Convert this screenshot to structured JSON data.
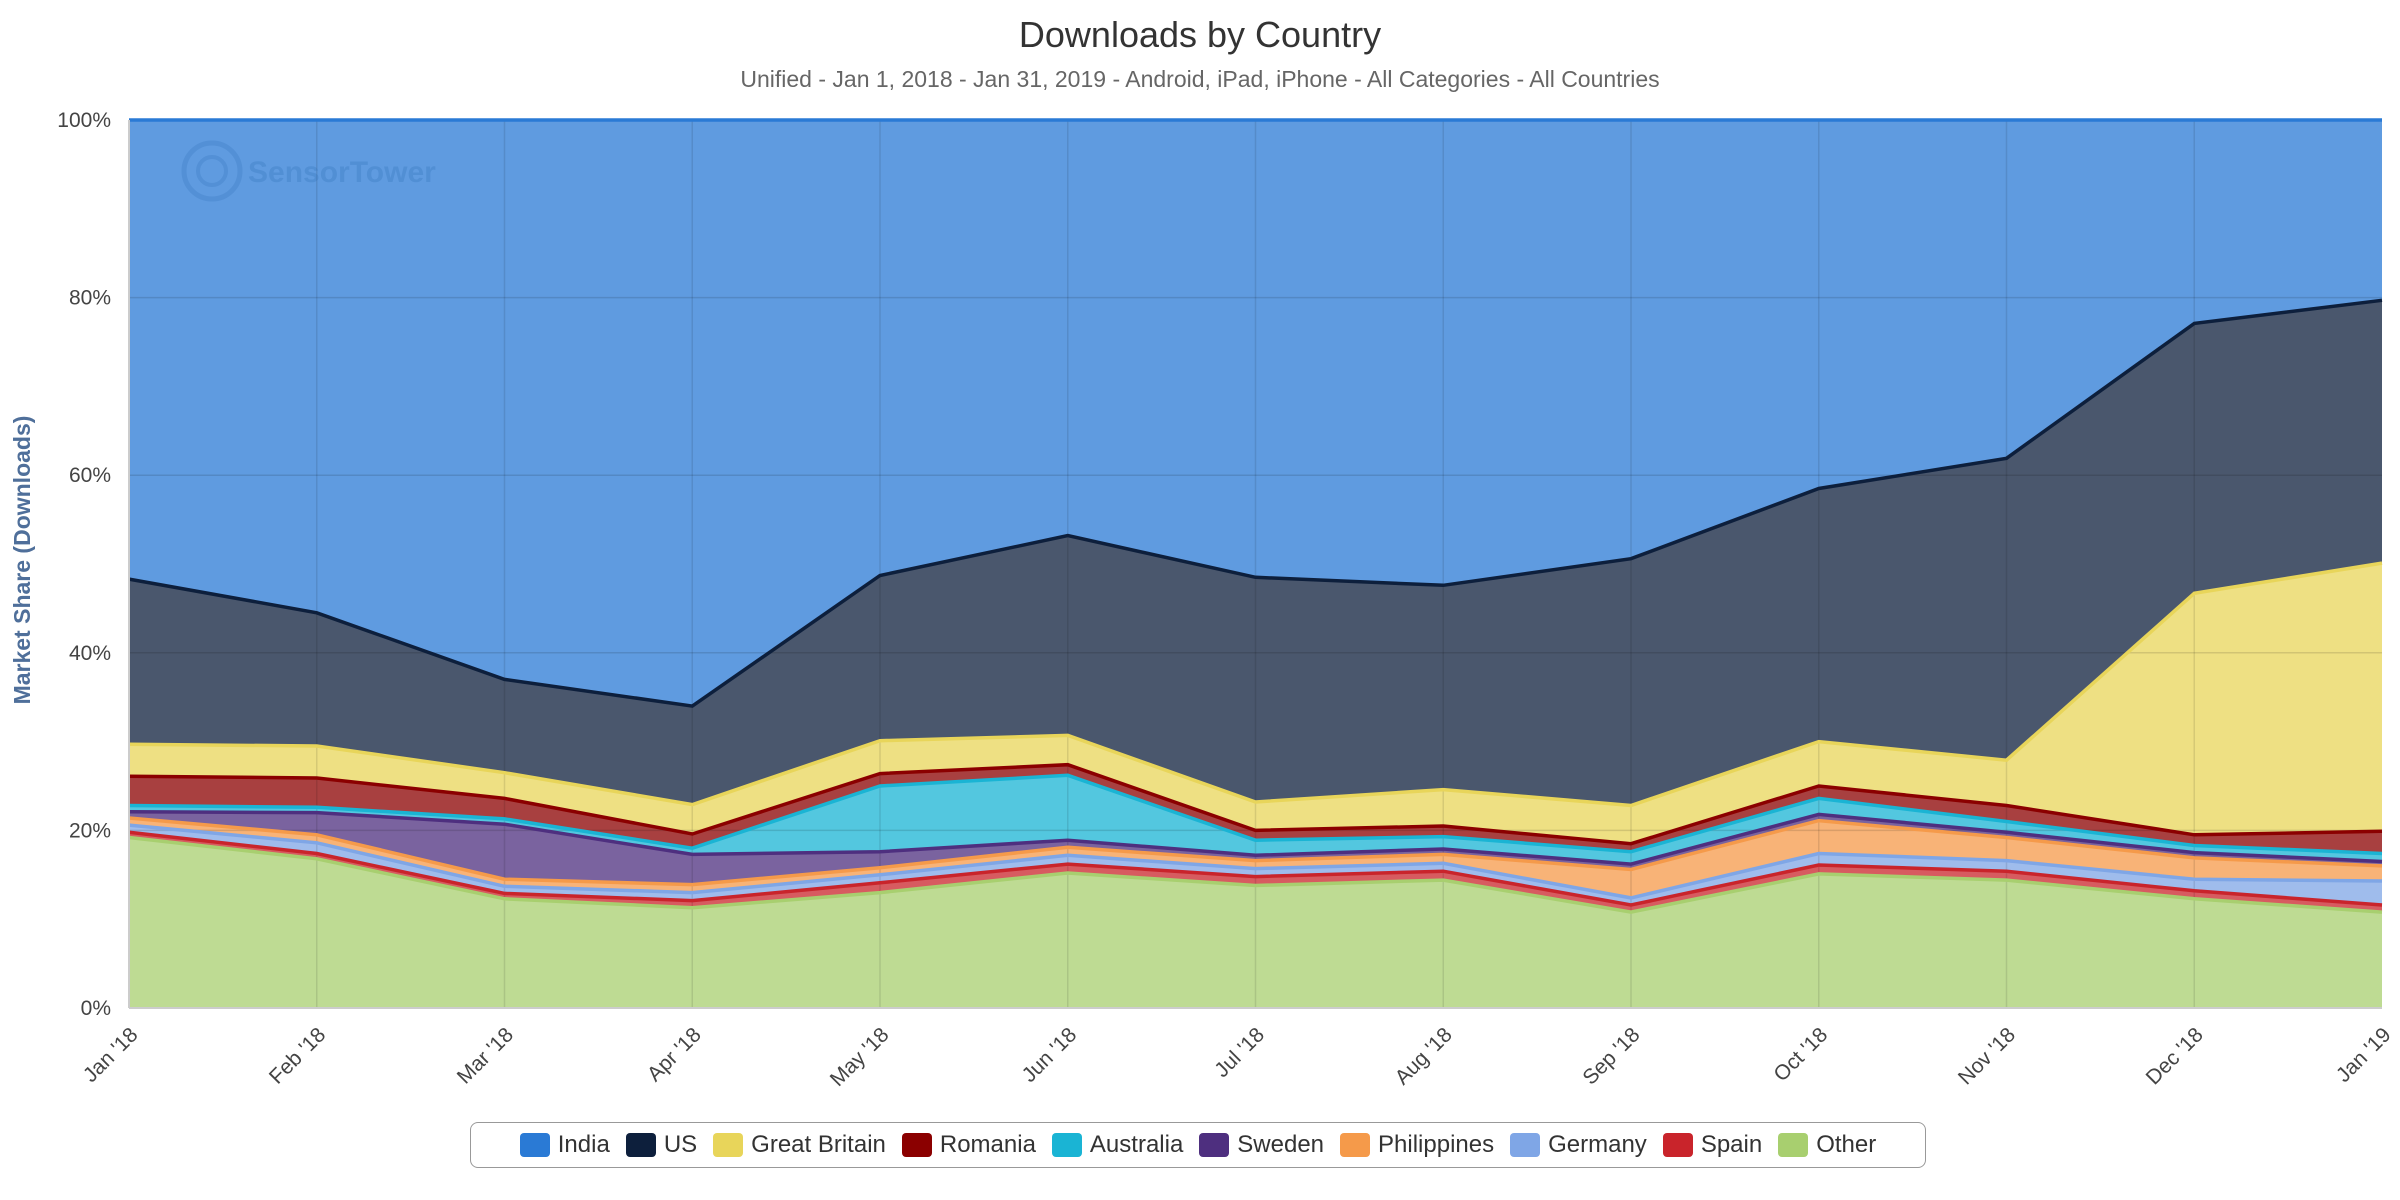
{
  "chart_data": {
    "type": "area",
    "stacked": true,
    "normalized": true,
    "title": "Downloads by Country",
    "subtitle": "Unified - Jan 1, 2018 - Jan 31, 2019 - Android, iPad, iPhone - All Categories - All Countries",
    "ylabel": "Market Share (Downloads)",
    "xlabel": "",
    "ylim": [
      0,
      100
    ],
    "y_ticks": [
      "0%",
      "20%",
      "40%",
      "60%",
      "80%",
      "100%"
    ],
    "y_tick_values": [
      0,
      20,
      40,
      60,
      80,
      100
    ],
    "categories": [
      "Jan '18",
      "Feb '18",
      "Mar '18",
      "Apr '18",
      "May '18",
      "Jun '18",
      "Jul '18",
      "Aug '18",
      "Sep '18",
      "Oct '18",
      "Nov '18",
      "Dec '18",
      "Jan '19"
    ],
    "grid": true,
    "legend_position": "bottom-center",
    "watermark": "SensorTower",
    "series": [
      {
        "name": "Other",
        "color": "#a8cf6f",
        "values": [
          19.2,
          16.8,
          12.3,
          11.3,
          13.0,
          15.2,
          13.8,
          14.4,
          10.8,
          15.1,
          14.4,
          12.3,
          10.8
        ]
      },
      {
        "name": "Spain",
        "color": "#c9242b",
        "values": [
          0.6,
          0.6,
          0.6,
          0.8,
          1.1,
          1.0,
          1.0,
          1.0,
          0.8,
          1.0,
          1.0,
          0.9,
          0.8
        ]
      },
      {
        "name": "Germany",
        "color": "#7fa6e6",
        "values": [
          0.8,
          1.2,
          0.8,
          0.9,
          0.9,
          1.0,
          0.9,
          0.9,
          0.8,
          1.3,
          1.2,
          1.3,
          2.7
        ]
      },
      {
        "name": "Philippines",
        "color": "#f59a4a",
        "values": [
          0.8,
          0.9,
          0.8,
          0.9,
          0.8,
          0.9,
          0.9,
          1.0,
          3.2,
          3.7,
          2.6,
          2.4,
          1.7
        ]
      },
      {
        "name": "Sweden",
        "color": "#4e2f7f",
        "values": [
          0.7,
          2.5,
          6.2,
          3.4,
          1.8,
          0.8,
          0.6,
          0.6,
          0.6,
          0.7,
          0.6,
          0.6,
          0.5
        ]
      },
      {
        "name": "Australia",
        "color": "#1ab4d4",
        "values": [
          0.7,
          0.6,
          0.6,
          0.7,
          7.4,
          7.3,
          1.7,
          1.4,
          1.4,
          1.8,
          1.2,
          0.8,
          0.9
        ]
      },
      {
        "name": "Romania",
        "color": "#8b0000",
        "values": [
          3.3,
          3.3,
          2.3,
          1.6,
          1.4,
          1.2,
          1.1,
          1.2,
          0.9,
          1.4,
          1.8,
          1.2,
          2.5
        ]
      },
      {
        "name": "Great Britain",
        "color": "#e8d55a",
        "values": [
          3.6,
          3.6,
          2.9,
          3.3,
          3.7,
          3.3,
          3.2,
          4.1,
          4.3,
          5.0,
          5.1,
          27.2,
          30.2
        ]
      },
      {
        "name": "US",
        "color": "#0d1f3c",
        "values": [
          18.6,
          15.0,
          10.5,
          11.1,
          18.6,
          22.5,
          25.3,
          23.0,
          27.8,
          28.5,
          34.0,
          30.4,
          29.6
        ]
      },
      {
        "name": "India",
        "color": "#2a7ad5",
        "values": [
          51.7,
          55.5,
          63.0,
          66.0,
          51.3,
          46.8,
          51.5,
          52.4,
          50.4,
          41.5,
          38.1,
          22.9,
          20.3
        ]
      }
    ]
  },
  "legend": {
    "items": [
      {
        "label": "India",
        "color": "#2a7ad5"
      },
      {
        "label": "US",
        "color": "#0d1f3c"
      },
      {
        "label": "Great Britain",
        "color": "#e8d55a"
      },
      {
        "label": "Romania",
        "color": "#8b0000"
      },
      {
        "label": "Australia",
        "color": "#1ab4d4"
      },
      {
        "label": "Sweden",
        "color": "#4e2f7f"
      },
      {
        "label": "Philippines",
        "color": "#f59a4a"
      },
      {
        "label": "Germany",
        "color": "#7fa6e6"
      },
      {
        "label": "Spain",
        "color": "#c9242b"
      },
      {
        "label": "Other",
        "color": "#a8cf6f"
      }
    ]
  }
}
